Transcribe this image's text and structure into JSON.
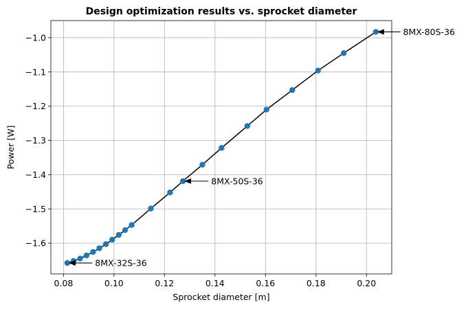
{
  "chart_data": {
    "type": "line",
    "title": "Design optimization results vs. sprocket diameter",
    "xlabel": "Sprocket diameter [m]",
    "ylabel": "Power [W]",
    "xlim": [
      0.075,
      0.21
    ],
    "ylim": [
      -1.69,
      -0.95
    ],
    "xticks": [
      0.08,
      0.1,
      0.12,
      0.14,
      0.16,
      0.18,
      0.2
    ],
    "xtick_labels": [
      "0.08",
      "0.10",
      "0.12",
      "0.14",
      "0.16",
      "0.18",
      "0.20"
    ],
    "yticks": [
      -1.6,
      -1.5,
      -1.4,
      -1.3,
      -1.2,
      -1.1,
      -1.0
    ],
    "ytick_labels": [
      "−1.6",
      "−1.5",
      "−1.4",
      "−1.3",
      "−1.2",
      "−1.1",
      "−1.0"
    ],
    "grid": true,
    "line_color": "#000000",
    "marker_color": "#1f77b4",
    "series": [
      {
        "x": [
          0.0815,
          0.084,
          0.0866,
          0.0891,
          0.0917,
          0.0942,
          0.0968,
          0.0993,
          0.1019,
          0.1044,
          0.107,
          0.1146,
          0.1222,
          0.1273,
          0.135,
          0.1426,
          0.1528,
          0.1604,
          0.1706,
          0.1808,
          0.191,
          0.2037
        ],
        "y": [
          -1.658,
          -1.652,
          -1.645,
          -1.636,
          -1.626,
          -1.615,
          -1.603,
          -1.59,
          -1.576,
          -1.562,
          -1.547,
          -1.499,
          -1.452,
          -1.419,
          -1.371,
          -1.322,
          -1.258,
          -1.21,
          -1.153,
          -1.096,
          -1.045,
          -0.983
        ]
      }
    ],
    "annotations": [
      {
        "text": "8MX-80S-36",
        "x": 0.2037,
        "y": -0.983,
        "text_x": 0.2145,
        "text_y": -0.983
      },
      {
        "text": "8MX-50S-36",
        "x": 0.1273,
        "y": -1.419,
        "text_x": 0.1385,
        "text_y": -1.419
      },
      {
        "text": "8MX-32S-36",
        "x": 0.0815,
        "y": -1.658,
        "text_x": 0.0925,
        "text_y": -1.658
      }
    ]
  }
}
